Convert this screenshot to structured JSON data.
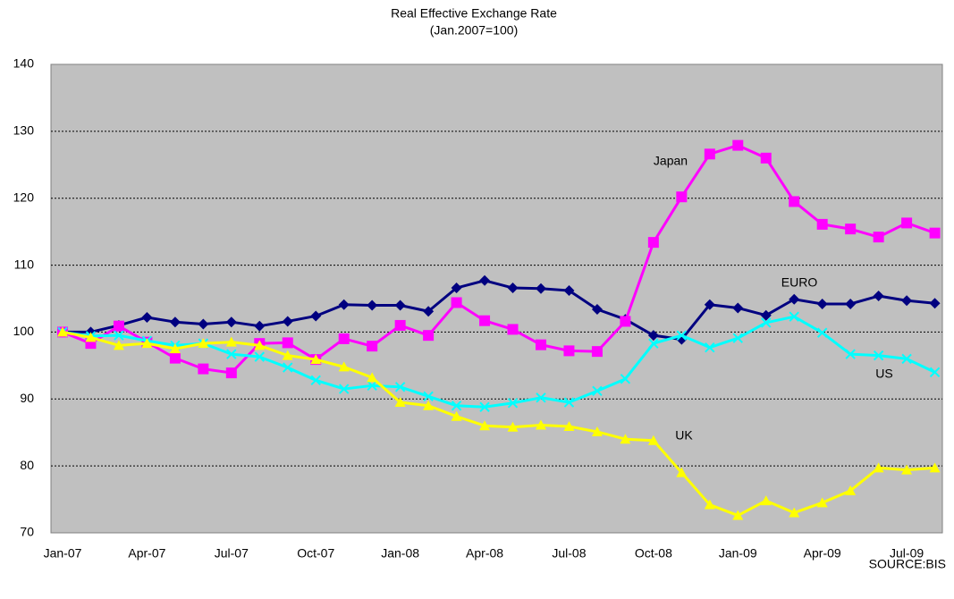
{
  "chart_data": {
    "type": "line",
    "title": "Real Effective Exchange Rate",
    "subtitle": "(Jan.2007=100)",
    "source": "SOURCE:BIS",
    "categories": [
      "Jan-07",
      null,
      null,
      "Apr-07",
      null,
      null,
      "Jul-07",
      null,
      null,
      "Oct-07",
      null,
      null,
      "Jan-08",
      null,
      null,
      "Apr-08",
      null,
      null,
      "Jul-08",
      null,
      null,
      "Oct-08",
      null,
      null,
      "Jan-09",
      null,
      null,
      "Apr-09",
      null,
      null,
      "Jul-09",
      null
    ],
    "ylim": [
      70,
      140
    ],
    "yticks": [
      70,
      80,
      90,
      100,
      110,
      120,
      130,
      140
    ],
    "grid": true,
    "series": [
      {
        "name": "EURO",
        "color": "#000080",
        "marker": "diamond",
        "values": [
          100,
          100,
          101,
          102.2,
          101.5,
          101.2,
          101.5,
          100.9,
          101.6,
          102.4,
          104.1,
          104,
          104,
          103.1,
          106.6,
          107.7,
          106.6,
          106.5,
          106.2,
          103.4,
          101.9,
          99.5,
          98.9,
          104.1,
          103.6,
          102.5,
          104.9,
          104.2,
          104.2,
          105.4,
          104.7,
          104.3
        ]
      },
      {
        "name": "Japan",
        "color": "#ff00ff",
        "marker": "square",
        "values": [
          100,
          98.3,
          100.9,
          98.5,
          96.1,
          94.5,
          93.9,
          98.3,
          98.4,
          95.9,
          99,
          97.9,
          101,
          99.5,
          104.4,
          101.7,
          100.4,
          98.1,
          97.2,
          97.1,
          101.6,
          113.4,
          120.2,
          126.6,
          127.9,
          126,
          119.5,
          116.1,
          115.4,
          114.2,
          116.3,
          114.8
        ]
      },
      {
        "name": "US",
        "color": "#00ffff",
        "marker": "x",
        "values": [
          100,
          99.4,
          99.5,
          98.7,
          98,
          98.3,
          96.7,
          96.3,
          94.7,
          92.8,
          91.5,
          92,
          91.8,
          90.4,
          89,
          88.8,
          89.4,
          90.2,
          89.5,
          91.2,
          93,
          98.3,
          99.5,
          97.7,
          99.1,
          101.4,
          102.3,
          99.9,
          96.7,
          96.5,
          96,
          94
        ]
      },
      {
        "name": "UK",
        "color": "#ffff00",
        "marker": "triangle",
        "values": [
          100,
          99.2,
          98,
          98.3,
          97.5,
          98.3,
          98.5,
          98,
          96.5,
          95.9,
          94.8,
          93.2,
          89.5,
          89,
          87.4,
          86,
          85.8,
          86.1,
          85.9,
          85.1,
          84,
          83.8,
          79,
          74.2,
          72.6,
          74.8,
          73,
          74.5,
          76.3,
          79.7,
          79.4,
          79.7
        ]
      }
    ]
  }
}
